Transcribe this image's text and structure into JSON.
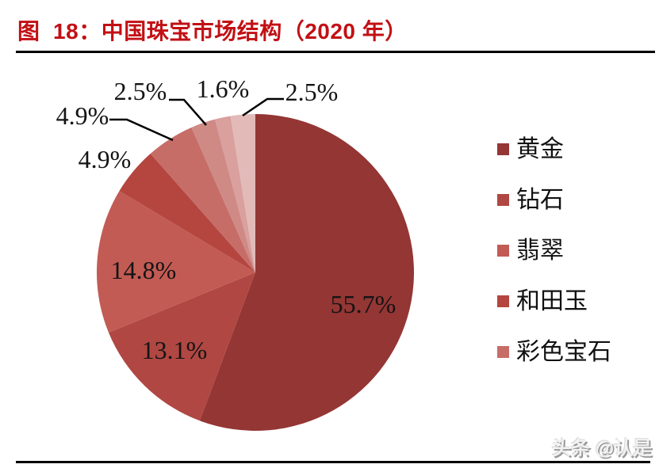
{
  "figure": {
    "title": "图  18：中国珠宝市场结构（2020 年）",
    "watermark": "头条 @认是"
  },
  "chart_data": {
    "type": "pie",
    "title": "中国珠宝市场结构（2020年）",
    "start_angle_deg": 0,
    "direction": "clockwise",
    "unit": "%",
    "series": [
      {
        "label": "黄金",
        "value": 55.7,
        "display": "55.7%",
        "color": "#943634"
      },
      {
        "label": "钻石",
        "value": 13.1,
        "display": "13.1%",
        "color": "#B04742"
      },
      {
        "label": "翡翠",
        "value": 14.8,
        "display": "14.8%",
        "color": "#C25B54"
      },
      {
        "label": "和田玉",
        "value": 4.9,
        "display": "4.9%",
        "color": "#B5453F"
      },
      {
        "label": "彩色宝石",
        "value": 4.9,
        "display": "4.9%",
        "color": "#C66D68"
      },
      {
        "label": "",
        "value": 2.5,
        "display": "2.5%",
        "color": "#CF8A86"
      },
      {
        "label": "",
        "value": 1.6,
        "display": "1.6%",
        "color": "#D9A09E"
      },
      {
        "label": "",
        "value": 2.5,
        "display": "2.5%",
        "color": "#E2BBB9"
      }
    ],
    "legend": {
      "position": "right",
      "items": [
        "黄金",
        "钻石",
        "翡翠",
        "和田玉",
        "彩色宝石"
      ]
    }
  }
}
